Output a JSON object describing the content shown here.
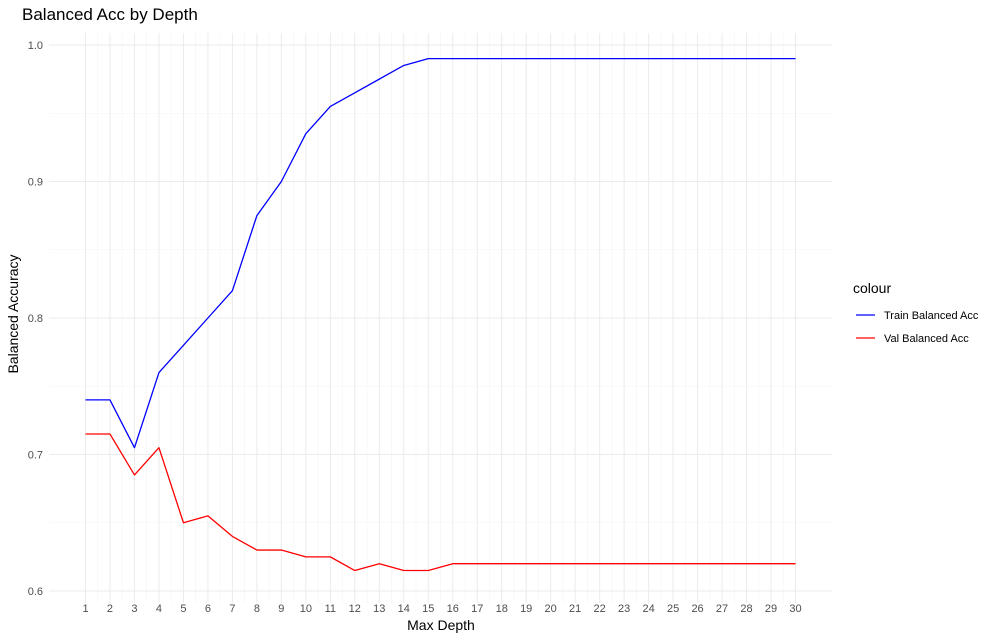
{
  "chart_data": {
    "type": "line",
    "title": "Balanced Acc by Depth",
    "xlabel": "Max Depth",
    "ylabel": "Balanced Accuracy",
    "x": [
      1,
      2,
      3,
      4,
      5,
      6,
      7,
      8,
      9,
      10,
      11,
      12,
      13,
      14,
      15,
      16,
      17,
      18,
      19,
      20,
      21,
      22,
      23,
      24,
      25,
      26,
      27,
      28,
      29,
      30
    ],
    "xlim": [
      1,
      30
    ],
    "ylim": [
      0.6,
      1.0
    ],
    "yticks": [
      0.6,
      0.7,
      0.8,
      0.9,
      1.0
    ],
    "ytick_labels": [
      "0.6",
      "0.7",
      "0.8",
      "0.9",
      "1.0"
    ],
    "grid": true,
    "legend": {
      "title": "colour",
      "position": "right"
    },
    "series": [
      {
        "name": "Train Balanced Acc",
        "color": "#0000ff",
        "values": [
          0.74,
          0.74,
          0.705,
          0.76,
          0.78,
          0.8,
          0.82,
          0.875,
          0.9,
          0.935,
          0.955,
          0.965,
          0.975,
          0.985,
          0.99,
          0.99,
          0.99,
          0.99,
          0.99,
          0.99,
          0.99,
          0.99,
          0.99,
          0.99,
          0.99,
          0.99,
          0.99,
          0.99,
          0.99,
          0.99
        ]
      },
      {
        "name": "Val Balanced Acc",
        "color": "#ff0000",
        "values": [
          0.715,
          0.715,
          0.685,
          0.705,
          0.65,
          0.655,
          0.64,
          0.63,
          0.63,
          0.625,
          0.625,
          0.615,
          0.62,
          0.615,
          0.615,
          0.62,
          0.62,
          0.62,
          0.62,
          0.62,
          0.62,
          0.62,
          0.62,
          0.62,
          0.62,
          0.62,
          0.62,
          0.62,
          0.62,
          0.62
        ]
      }
    ]
  }
}
